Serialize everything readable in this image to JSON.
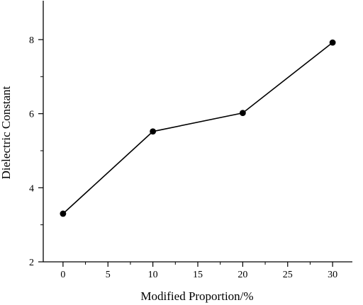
{
  "chart_data": {
    "type": "line",
    "title": "",
    "xlabel": "Modified Proportion/%",
    "ylabel": "Dielectric Constant",
    "x": [
      0,
      10,
      20,
      30
    ],
    "y": [
      3.3,
      5.52,
      6.02,
      7.92
    ],
    "xlim": [
      -2.2,
      32.2
    ],
    "ylim": [
      2,
      9.05
    ],
    "x_ticks": [
      0,
      5,
      10,
      15,
      20,
      25,
      30
    ],
    "x_tick_labels": [
      "0",
      "5",
      "10",
      "15",
      "20",
      "25",
      "30"
    ],
    "x_minor_ticks": [
      2.5,
      7.5,
      12.5,
      17.5,
      22.5,
      27.5
    ],
    "y_ticks": [
      2,
      4,
      6,
      8
    ],
    "y_tick_labels": [
      "2",
      "4",
      "6",
      "8"
    ],
    "y_minor_ticks": [
      3,
      5,
      7
    ],
    "grid": false,
    "legend": "none",
    "colors": {
      "line": "#000000",
      "marker": "#000000",
      "axis": "#000000"
    }
  }
}
